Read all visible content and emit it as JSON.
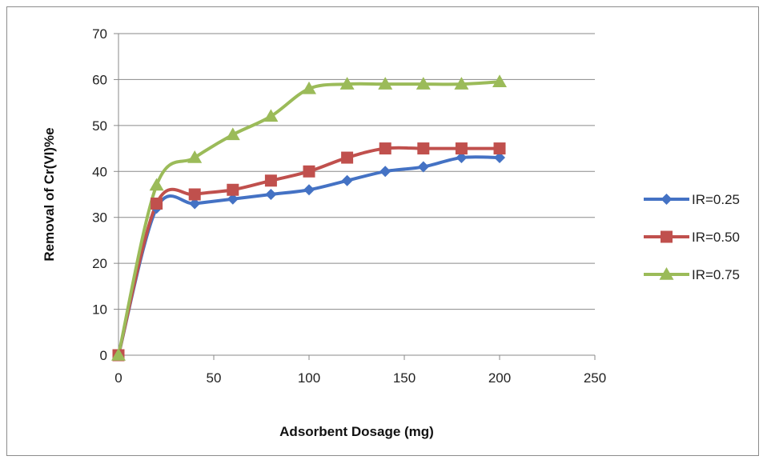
{
  "chart_data": {
    "type": "line",
    "title": "",
    "xlabel": "Adsorbent Dosage (mg)",
    "ylabel": "Removal of Cr(VI)%e",
    "xlim": [
      0,
      250
    ],
    "ylim": [
      0,
      70
    ],
    "x_ticks": [
      0,
      50,
      100,
      150,
      200,
      250
    ],
    "y_ticks": [
      0,
      10,
      20,
      30,
      40,
      50,
      60,
      70
    ],
    "grid": "horizontal",
    "legend_position": "right",
    "smooth": true,
    "series": [
      {
        "name": "IR=0.25",
        "color": "#4472C4",
        "marker": "diamond",
        "x": [
          0,
          20,
          40,
          60,
          80,
          100,
          120,
          140,
          160,
          180,
          200
        ],
        "y": [
          0,
          32,
          33,
          34,
          35,
          36,
          38,
          40,
          41,
          43,
          43
        ]
      },
      {
        "name": "IR=0.50",
        "color": "#C0504D",
        "marker": "square",
        "x": [
          0,
          20,
          40,
          60,
          80,
          100,
          120,
          140,
          160,
          180,
          200
        ],
        "y": [
          0,
          33,
          35,
          36,
          38,
          40,
          43,
          45,
          45,
          45,
          45
        ]
      },
      {
        "name": "IR=0.75",
        "color": "#9BBB59",
        "marker": "triangle",
        "x": [
          0,
          20,
          40,
          60,
          80,
          100,
          120,
          140,
          160,
          180,
          200
        ],
        "y": [
          0,
          37,
          43,
          48,
          52,
          58,
          59,
          59,
          59,
          59,
          59.5
        ]
      }
    ]
  }
}
